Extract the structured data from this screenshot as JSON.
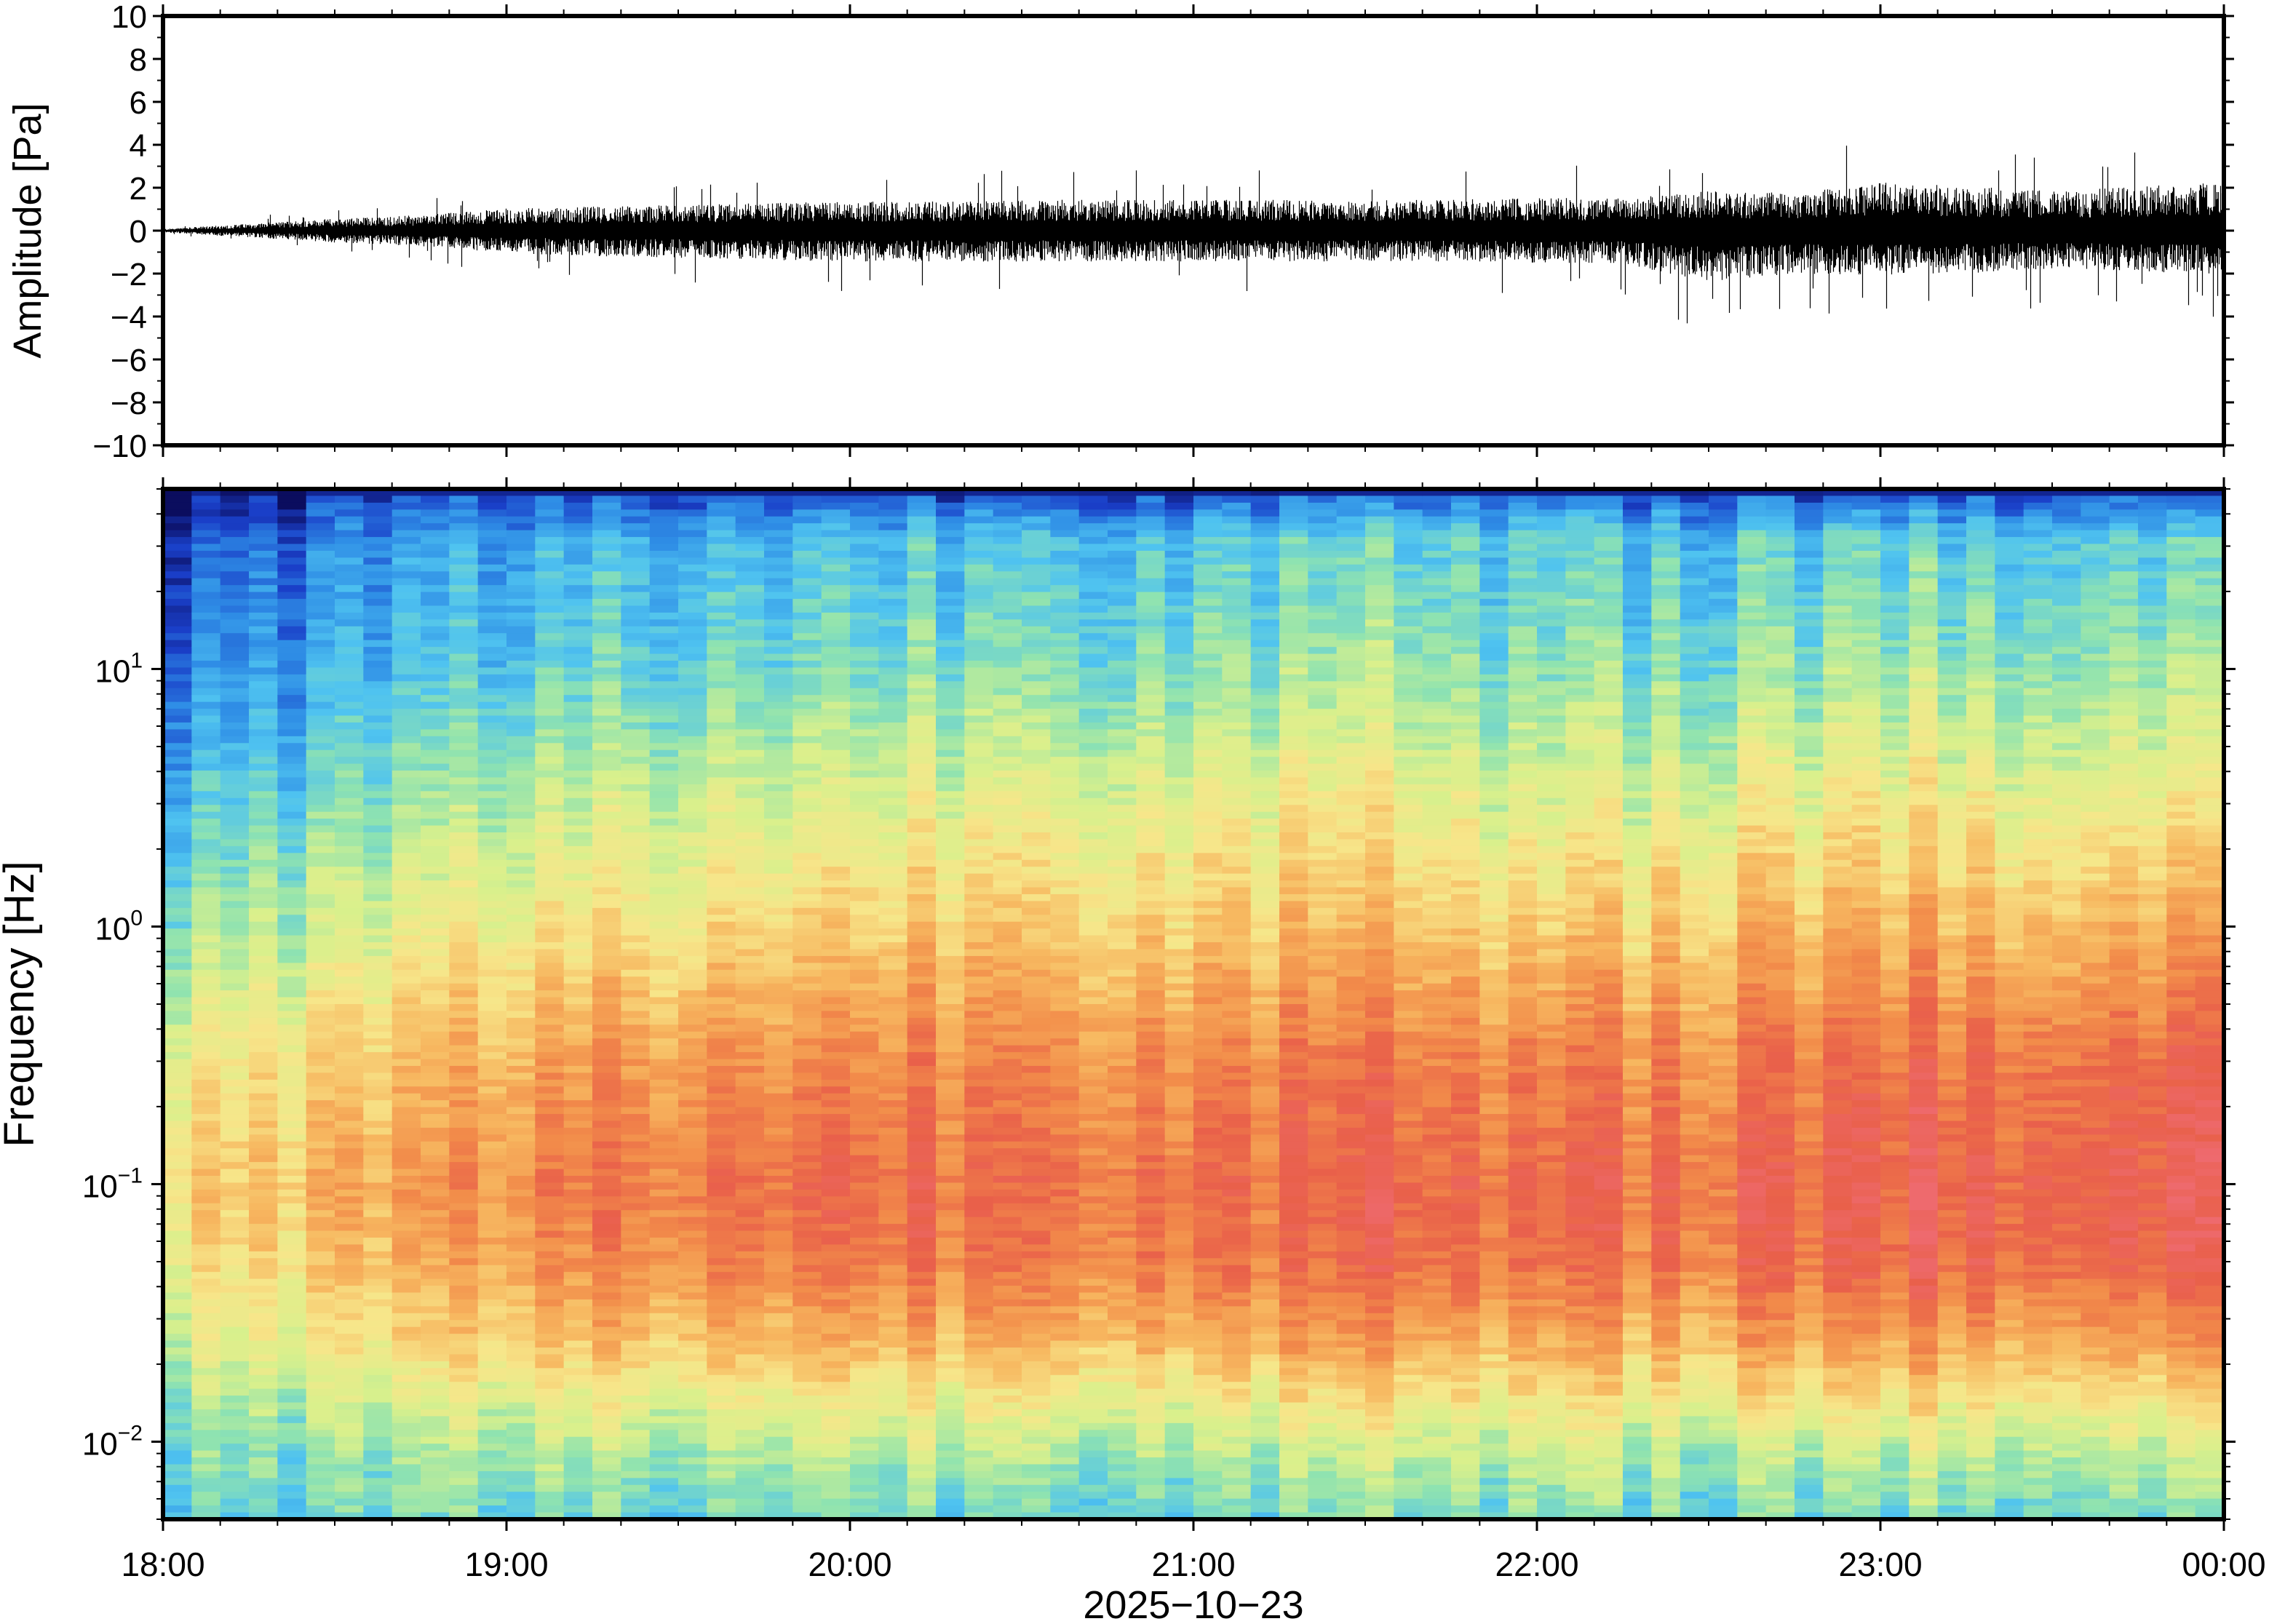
{
  "chart_data": [
    {
      "type": "line",
      "ylabel": "Amplitude [Pa]",
      "ylim": [
        -10,
        10
      ],
      "yticks": [
        10,
        8,
        6,
        4,
        2,
        0,
        -2,
        -4,
        -6,
        -8,
        -10
      ],
      "ytick_labels": [
        "10",
        "8",
        "6",
        "4",
        "2",
        "0",
        "−2",
        "−4",
        "−6",
        "−8",
        "−10"
      ],
      "xlim": [
        "2025-10-23 18:00",
        "2025-10-24 00:00"
      ],
      "grid": false,
      "series": [
        {
          "x": [
            "18:00",
            "18:15",
            "18:30",
            "18:45",
            "19:00",
            "19:15",
            "19:30",
            "19:45",
            "20:00",
            "20:15",
            "20:30",
            "20:45",
            "21:00",
            "21:15",
            "21:30",
            "21:45",
            "22:00",
            "22:15",
            "22:30",
            "22:45",
            "23:00",
            "23:15",
            "23:30",
            "23:45",
            "00:00"
          ],
          "envelope_max": [
            0.1,
            0.4,
            0.7,
            0.9,
            1.3,
            1.4,
            1.5,
            1.6,
            1.7,
            1.7,
            1.8,
            1.8,
            1.8,
            1.8,
            1.8,
            1.8,
            1.9,
            1.9,
            2.3,
            2.2,
            2.8,
            2.6,
            2.3,
            2.6,
            2.8
          ],
          "envelope_min": [
            -0.1,
            -0.4,
            -0.7,
            -0.9,
            -1.3,
            -1.5,
            -1.6,
            -1.7,
            -1.8,
            -1.8,
            -1.8,
            -1.8,
            -1.8,
            -1.8,
            -1.8,
            -1.8,
            -1.9,
            -1.9,
            -3.0,
            -2.5,
            -2.6,
            -2.5,
            -2.2,
            -2.4,
            -2.6
          ]
        }
      ]
    },
    {
      "type": "heatmap",
      "ylabel": "Frequency [Hz]",
      "xlabel": "2025−10−23",
      "yscale": "log",
      "ylim": [
        0.005,
        50
      ],
      "yticks": [
        10,
        1,
        0.1,
        0.01
      ],
      "ytick_labels": [
        {
          "base": "10",
          "exp": "1"
        },
        {
          "base": "10",
          "exp": "0"
        },
        {
          "base": "10",
          "exp": "−1"
        },
        {
          "base": "10",
          "exp": "−2"
        }
      ],
      "xticks": [
        "18:00",
        "19:00",
        "20:00",
        "21:00",
        "22:00",
        "23:00",
        "00:00"
      ],
      "colormap": "spectral",
      "colors": [
        "#0b0d5e",
        "#1a3fc8",
        "#2f8ee6",
        "#4fc3f0",
        "#8fe3b0",
        "#d9f08c",
        "#f7e68a",
        "#f7b860",
        "#f28c4a",
        "#e9604a",
        "#ee6a6e"
      ],
      "time_hours": [
        0,
        0.5,
        1,
        1.5,
        2,
        2.5,
        3,
        3.5,
        4,
        4.5,
        5,
        5.5,
        6
      ],
      "log10_freq": [
        1.7,
        1.5,
        1,
        0.5,
        0,
        -0.5,
        -1,
        -1.3,
        -1.6,
        -1.9,
        -2.1,
        -2.3
      ],
      "relative_power": [
        [
          0.0,
          0.05,
          0.1,
          0.1,
          0.1,
          0.12,
          0.12,
          0.12,
          0.12,
          0.12,
          0.12,
          0.12,
          0.12
        ],
        [
          0.1,
          0.18,
          0.25,
          0.28,
          0.3,
          0.32,
          0.33,
          0.33,
          0.3,
          0.32,
          0.34,
          0.33,
          0.34
        ],
        [
          0.18,
          0.24,
          0.32,
          0.36,
          0.38,
          0.4,
          0.42,
          0.42,
          0.36,
          0.4,
          0.44,
          0.42,
          0.44
        ],
        [
          0.28,
          0.36,
          0.45,
          0.5,
          0.52,
          0.55,
          0.56,
          0.56,
          0.48,
          0.55,
          0.58,
          0.56,
          0.58
        ],
        [
          0.4,
          0.48,
          0.58,
          0.62,
          0.65,
          0.68,
          0.68,
          0.68,
          0.62,
          0.68,
          0.72,
          0.7,
          0.74
        ],
        [
          0.55,
          0.62,
          0.72,
          0.78,
          0.8,
          0.82,
          0.82,
          0.82,
          0.78,
          0.82,
          0.86,
          0.86,
          0.9
        ],
        [
          0.62,
          0.7,
          0.8,
          0.86,
          0.88,
          0.88,
          0.88,
          0.88,
          0.85,
          0.88,
          0.92,
          0.92,
          0.95
        ],
        [
          0.58,
          0.65,
          0.76,
          0.82,
          0.84,
          0.86,
          0.86,
          0.86,
          0.82,
          0.86,
          0.9,
          0.9,
          0.92
        ],
        [
          0.5,
          0.56,
          0.66,
          0.7,
          0.72,
          0.74,
          0.74,
          0.74,
          0.7,
          0.74,
          0.76,
          0.76,
          0.78
        ],
        [
          0.4,
          0.44,
          0.5,
          0.52,
          0.54,
          0.55,
          0.55,
          0.55,
          0.52,
          0.55,
          0.56,
          0.56,
          0.58
        ],
        [
          0.36,
          0.38,
          0.42,
          0.42,
          0.44,
          0.44,
          0.44,
          0.44,
          0.42,
          0.44,
          0.45,
          0.45,
          0.46
        ],
        [
          0.33,
          0.34,
          0.36,
          0.36,
          0.37,
          0.37,
          0.37,
          0.37,
          0.36,
          0.37,
          0.38,
          0.38,
          0.38
        ]
      ]
    }
  ]
}
